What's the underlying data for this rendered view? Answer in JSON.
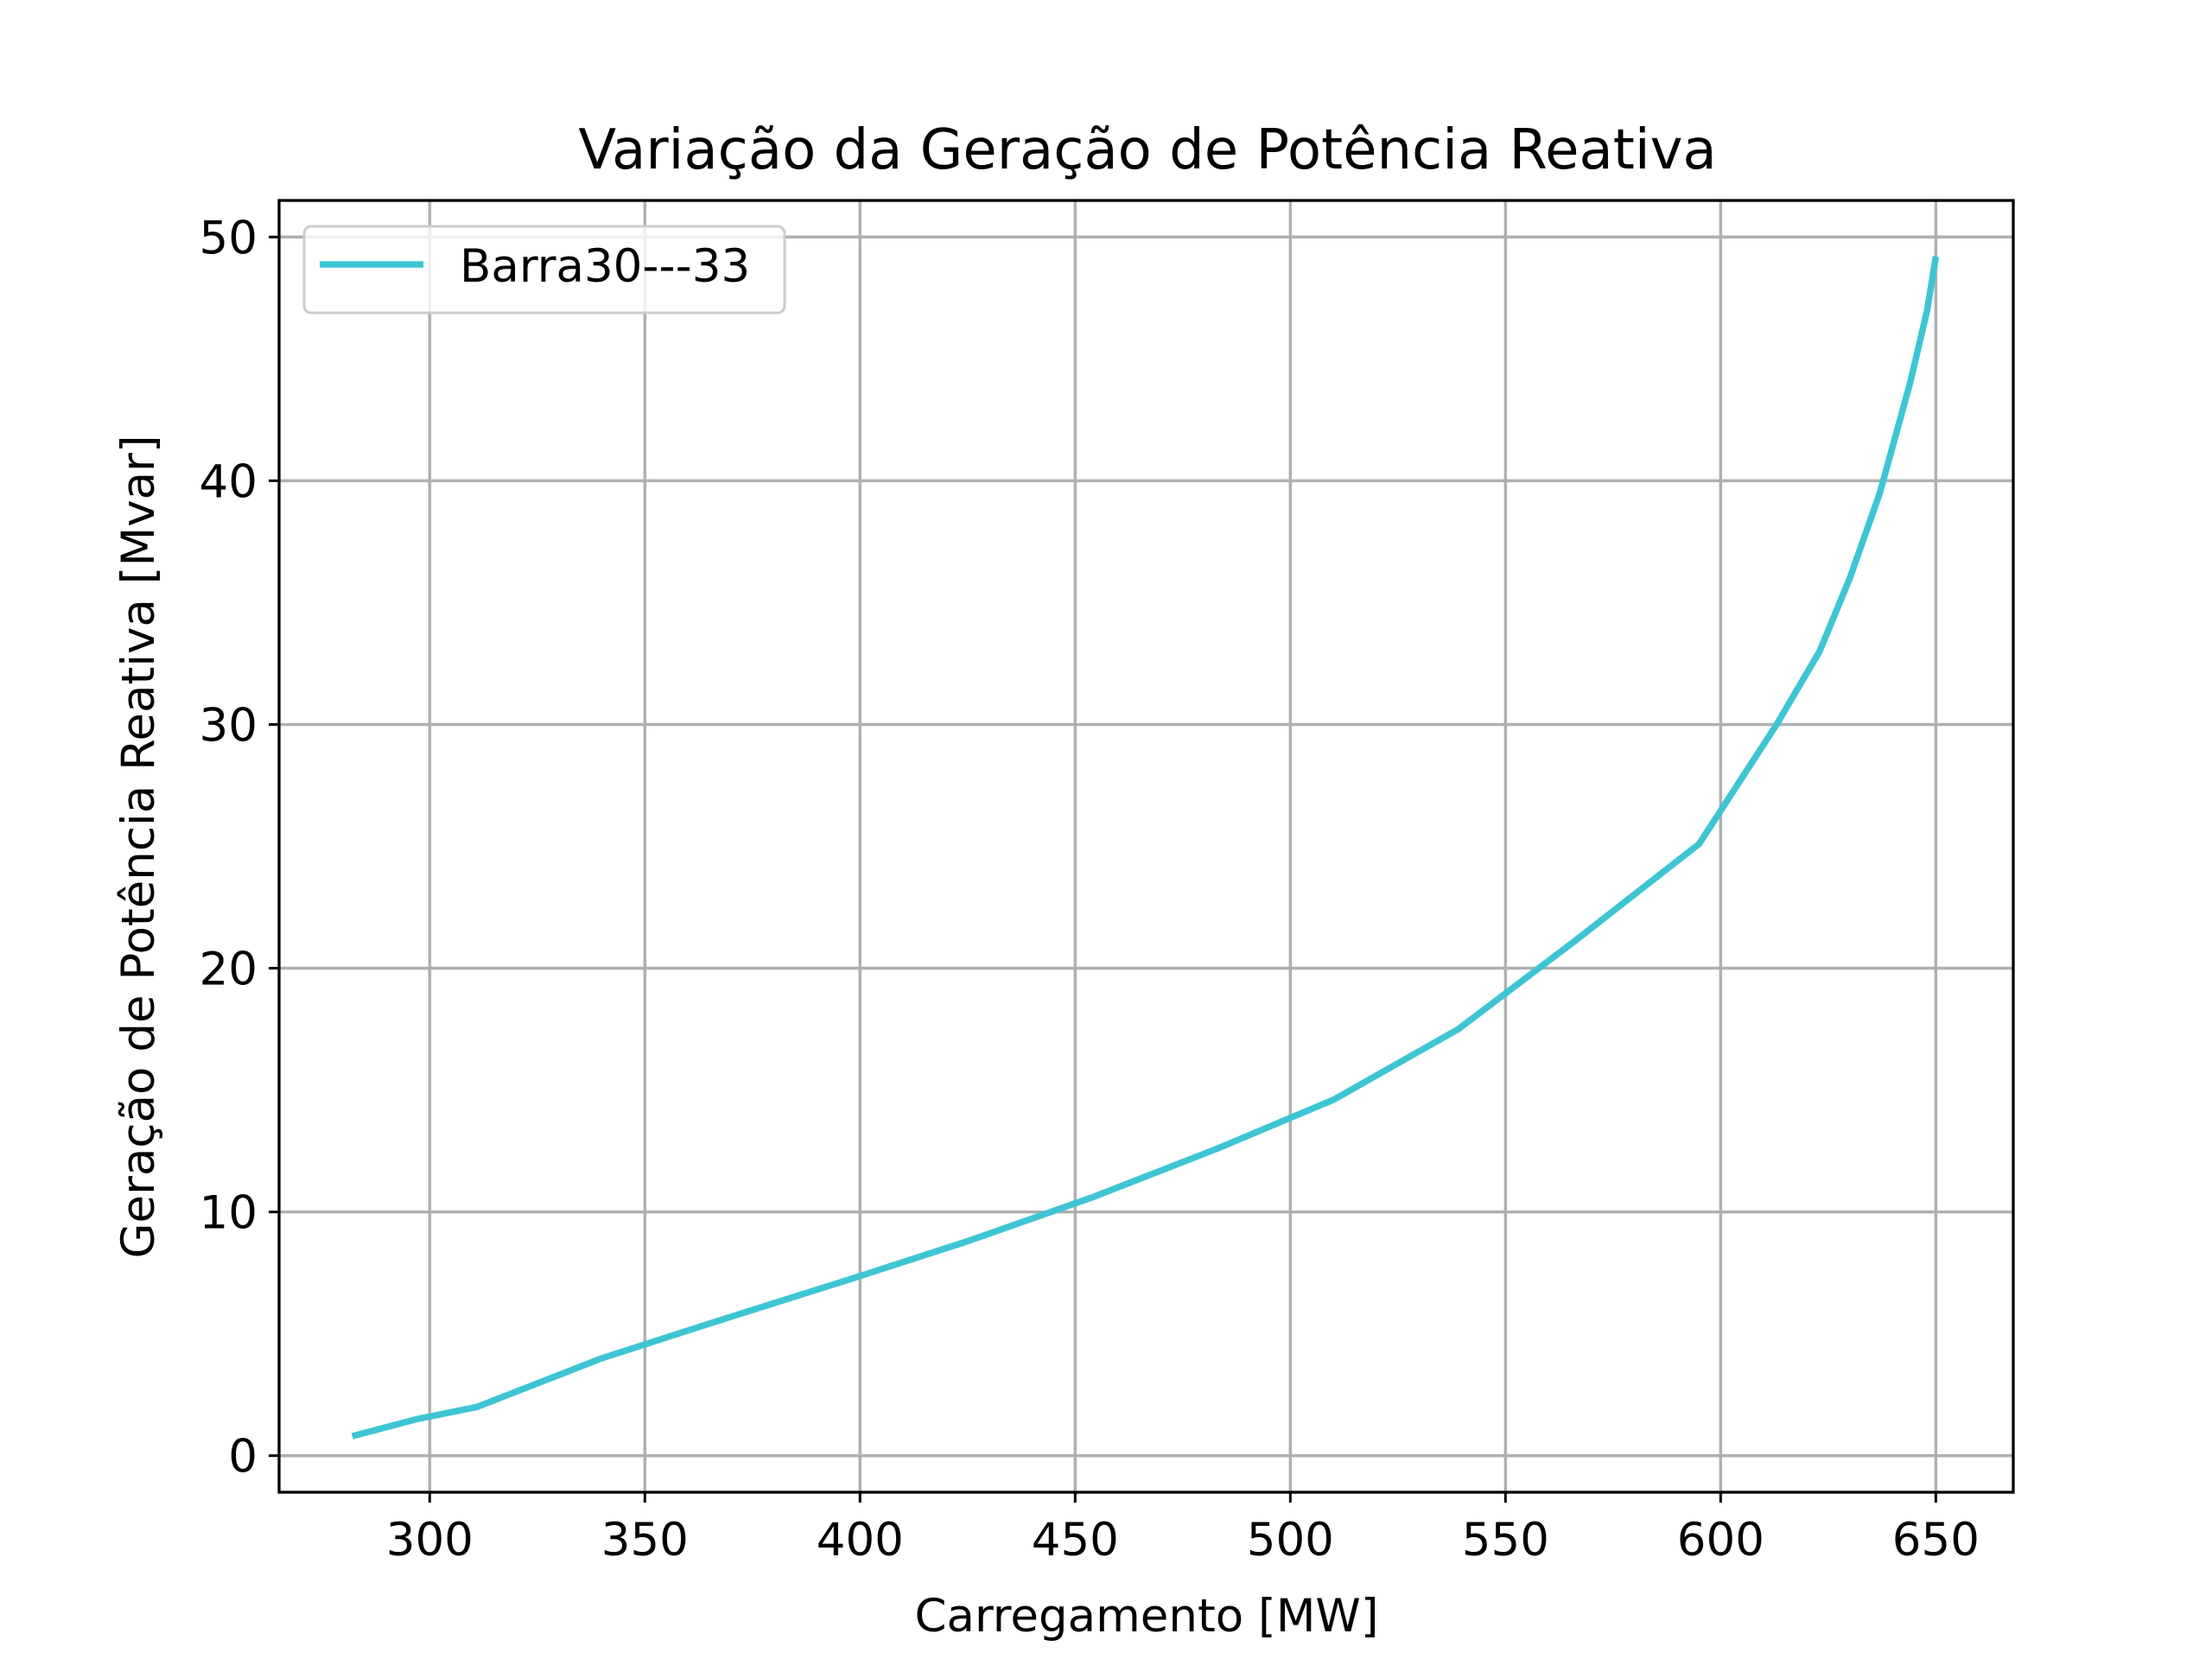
{
  "chart_data": {
    "type": "line",
    "title": "Variação da Geração de Potência Reativa",
    "xlabel": "Carregamento [MW]",
    "ylabel": "Geração de Potência Reativa [Mvar]",
    "xlim": [
      265,
      668
    ],
    "ylim": [
      -1.5,
      51.5
    ],
    "xticks": [
      300,
      350,
      400,
      450,
      500,
      550,
      600,
      650
    ],
    "yticks": [
      0,
      10,
      20,
      30,
      40,
      50
    ],
    "grid": true,
    "legend_position": "upper left",
    "series": [
      {
        "name": "Barra30---33",
        "color": "#3ec5d4",
        "x": [
          282,
          297,
          311,
          340,
          370,
          397,
          425,
          454,
          483,
          510,
          539,
          566,
          595,
          613,
          623,
          630,
          637,
          644,
          648,
          650
        ],
        "y": [
          0.8,
          1.5,
          2.0,
          4.0,
          5.7,
          7.2,
          8.8,
          10.6,
          12.6,
          14.6,
          17.5,
          21.1,
          25.1,
          30.0,
          33.0,
          36.0,
          39.5,
          44.0,
          47.0,
          49.2
        ]
      }
    ]
  }
}
